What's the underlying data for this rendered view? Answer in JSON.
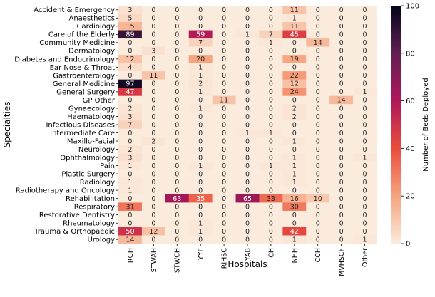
{
  "chart_data": {
    "type": "heatmap",
    "xlabel": "Hospitals",
    "ylabel": "Specialties",
    "colorbar_label": "Number of Beds Deployed",
    "vmin": 0,
    "vmax": 100,
    "colorbar_ticks": [
      0,
      20,
      40,
      60,
      80,
      100
    ],
    "columns": [
      "RGH",
      "STWAH",
      "STWCH",
      "YYF",
      "RIHSC",
      "YAB",
      "CH",
      "NHH",
      "CCH",
      "MVHSCF",
      "Other"
    ],
    "rows": [
      "Accident & Emergency",
      "Anaesthetics",
      "Cardiology",
      "Care of the Elderly",
      "Community Medicine",
      "Dermatology",
      "Diabetes and Endocrinology",
      "Ear Nose & Throat",
      "Gastroenterology",
      "General Medicine",
      "General Surgery",
      "GP Other",
      "Gynaecology",
      "Haematology",
      "Infectious Diseases",
      "Intermediate Care",
      "Maxillo-Facial",
      "Neurology",
      "Ophthalmology",
      "Pain",
      "Plastic Surgery",
      "Radiology",
      "Radiotherapy and Oncology",
      "Rehabilitation",
      "Respiratory",
      "Restorative Dentistry",
      "Rheumatology",
      "Trauma & Orthopaedic",
      "Urology"
    ],
    "values": [
      [
        3,
        0,
        0,
        0,
        0,
        0,
        0,
        11,
        0,
        0,
        0
      ],
      [
        5,
        0,
        0,
        0,
        0,
        0,
        0,
        1,
        0,
        0,
        0
      ],
      [
        15,
        0,
        0,
        0,
        0,
        0,
        0,
        11,
        0,
        0,
        0
      ],
      [
        89,
        0,
        0,
        59,
        0,
        1,
        7,
        45,
        0,
        0,
        0
      ],
      [
        0,
        0,
        0,
        7,
        0,
        0,
        1,
        0,
        14,
        0,
        0
      ],
      [
        0,
        3,
        0,
        0,
        0,
        0,
        0,
        0,
        0,
        0,
        0
      ],
      [
        12,
        0,
        0,
        20,
        0,
        0,
        0,
        19,
        0,
        0,
        0
      ],
      [
        4,
        0,
        0,
        1,
        0,
        0,
        0,
        0,
        0,
        0,
        0
      ],
      [
        0,
        11,
        0,
        1,
        0,
        0,
        0,
        22,
        0,
        0,
        0
      ],
      [
        97,
        0,
        0,
        2,
        0,
        0,
        0,
        12,
        0,
        0,
        0
      ],
      [
        47,
        0,
        0,
        1,
        0,
        0,
        0,
        24,
        0,
        0,
        1
      ],
      [
        0,
        0,
        0,
        0,
        11,
        0,
        0,
        0,
        0,
        14,
        0
      ],
      [
        2,
        0,
        0,
        1,
        0,
        0,
        0,
        2,
        0,
        0,
        0
      ],
      [
        3,
        0,
        0,
        0,
        0,
        0,
        0,
        2,
        0,
        0,
        0
      ],
      [
        7,
        0,
        0,
        0,
        0,
        0,
        0,
        0,
        0,
        0,
        0
      ],
      [
        0,
        0,
        0,
        0,
        0,
        1,
        1,
        0,
        0,
        0,
        0
      ],
      [
        0,
        2,
        0,
        0,
        0,
        0,
        0,
        1,
        0,
        0,
        0
      ],
      [
        2,
        0,
        0,
        0,
        0,
        0,
        0,
        0,
        0,
        0,
        0
      ],
      [
        3,
        0,
        0,
        0,
        0,
        0,
        0,
        1,
        0,
        0,
        1
      ],
      [
        1,
        0,
        0,
        1,
        0,
        0,
        1,
        1,
        0,
        0,
        0
      ],
      [
        0,
        0,
        0,
        0,
        0,
        0,
        0,
        1,
        0,
        0,
        0
      ],
      [
        1,
        0,
        0,
        0,
        0,
        0,
        0,
        1,
        0,
        0,
        0
      ],
      [
        1,
        0,
        0,
        0,
        0,
        0,
        0,
        0,
        0,
        0,
        0
      ],
      [
        0,
        0,
        63,
        35,
        0,
        65,
        33,
        16,
        10,
        0,
        0
      ],
      [
        31,
        0,
        0,
        0,
        0,
        0,
        0,
        30,
        0,
        0,
        0
      ],
      [
        0,
        0,
        0,
        0,
        0,
        0,
        0,
        0,
        0,
        0,
        0
      ],
      [
        0,
        0,
        0,
        1,
        0,
        0,
        0,
        0,
        0,
        0,
        0
      ],
      [
        50,
        12,
        0,
        1,
        0,
        0,
        0,
        42,
        0,
        0,
        0
      ],
      [
        14,
        0,
        0,
        0,
        0,
        0,
        0,
        1,
        0,
        0,
        1
      ]
    ],
    "colormap_stops": [
      "#faebdd",
      "#f6a47e",
      "#ea4c3c",
      "#b01759",
      "#611f53",
      "#03051a"
    ]
  }
}
